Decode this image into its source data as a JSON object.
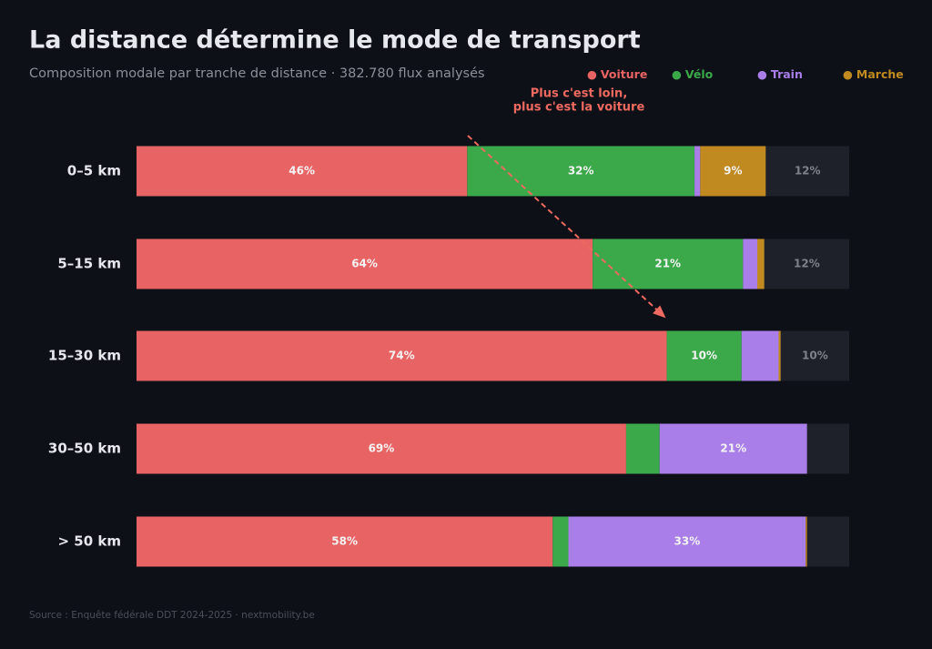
{
  "chart_data": {
    "type": "stacked-barh",
    "title": "La distance détermine le mode de transport",
    "subtitle": "Composition modale par tranche de distance · 382.780 flux analysés",
    "source": "Source : Enquête fédérale DDT 2024-2025 · nextmobility.be",
    "annotation": [
      "Plus c'est loin,",
      "plus c'est la voiture"
    ],
    "legend_marker": "●",
    "categories": [
      "0–5 km",
      "5–15 km",
      "15–30 km",
      "30–50 km",
      "> 50 km"
    ],
    "xlim": [
      0,
      100
    ],
    "series": [
      {
        "name": "Voiture",
        "color": "#e86464",
        "values": [
          46.4,
          64.0,
          74.4,
          68.7,
          58.4
        ],
        "value_labels": [
          "46%",
          "64%",
          "74%",
          "69%",
          "58%"
        ]
      },
      {
        "name": "Vélo",
        "color": "#3ba84a",
        "values": [
          31.9,
          21.1,
          10.5,
          4.7,
          2.2
        ],
        "value_labels": [
          "32%",
          "21%",
          "10%",
          null,
          null
        ]
      },
      {
        "name": "Train",
        "color": "#a97ee8",
        "values": [
          0.8,
          2.0,
          5.2,
          20.7,
          33.3
        ],
        "value_labels": [
          null,
          null,
          null,
          "21%",
          "33%"
        ]
      },
      {
        "name": "Marche",
        "color": "#c08a20",
        "values": [
          9.2,
          1.0,
          0.3,
          0.0,
          0.2
        ],
        "value_labels": [
          "9%",
          null,
          null,
          null,
          null
        ]
      }
    ],
    "rest": {
      "color": "#1e2129",
      "values": [
        11.7,
        11.9,
        9.6,
        5.9,
        5.9
      ],
      "value_labels": [
        "12%",
        "12%",
        "10%",
        null,
        null
      ]
    }
  }
}
